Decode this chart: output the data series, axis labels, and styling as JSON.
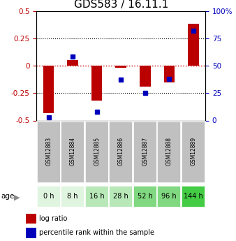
{
  "title": "GDS583 / 16.11.1",
  "samples": [
    "GSM12883",
    "GSM12884",
    "GSM12885",
    "GSM12886",
    "GSM12887",
    "GSM12888",
    "GSM12889"
  ],
  "ages": [
    "0 h",
    "8 h",
    "16 h",
    "28 h",
    "52 h",
    "96 h",
    "144 h"
  ],
  "log_ratio": [
    -0.43,
    0.05,
    -0.32,
    -0.02,
    -0.19,
    -0.15,
    0.38
  ],
  "percentile_rank": [
    3,
    58,
    8,
    37,
    25,
    38,
    82
  ],
  "ylim_left": [
    -0.5,
    0.5
  ],
  "ylim_right": [
    0,
    100
  ],
  "yticks_left": [
    -0.5,
    -0.25,
    0,
    0.25,
    0.5
  ],
  "yticks_right": [
    0,
    25,
    50,
    75,
    100
  ],
  "left_color": "#bb0000",
  "right_color": "#0000bb",
  "bar_red": "#bb0000",
  "bar_blue": "#0000bb",
  "hline_color": "#cc0000",
  "age_colors": [
    "#e0f5e0",
    "#e0f5e0",
    "#b8e8b8",
    "#b8e8b8",
    "#80d880",
    "#80d880",
    "#44cc44"
  ],
  "sample_bg_color": "#c0c0c0",
  "title_fontsize": 11,
  "tick_fontsize": 7.5
}
